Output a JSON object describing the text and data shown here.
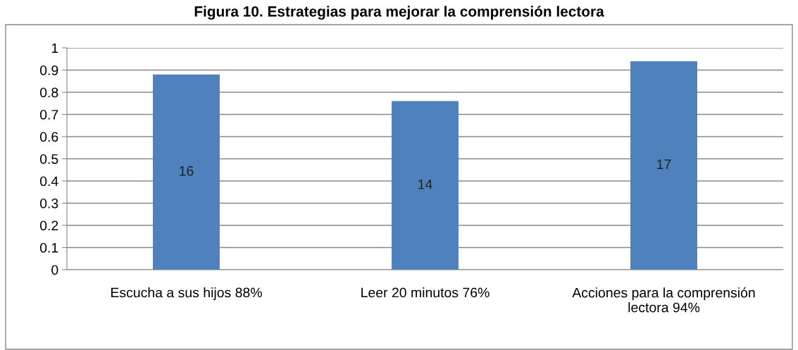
{
  "chart_data": {
    "type": "bar",
    "title": "Figura 10. Estrategias para mejorar la comprensión lectora",
    "categories": [
      "Escucha a sus hijos 88%",
      "Leer 20 minutos 76%",
      "Acciones para la comprensión\nlectora 94%"
    ],
    "values": [
      0.88,
      0.76,
      0.94
    ],
    "color": "#4f81bd",
    "annotations": [
      "16",
      "14",
      "17"
    ],
    "ylim": [
      0,
      1
    ],
    "yticks": [
      0,
      0.1,
      0.2,
      0.3,
      0.4,
      0.5,
      0.6,
      0.7,
      0.8,
      0.9,
      1
    ],
    "grid": "y",
    "legend": false
  }
}
